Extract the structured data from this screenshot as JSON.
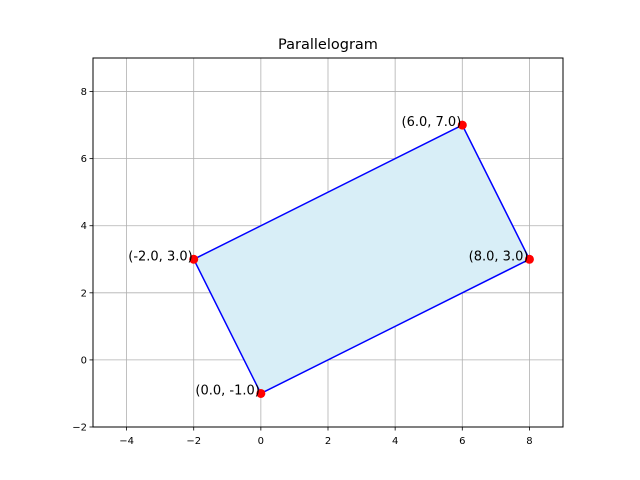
{
  "chart_data": {
    "type": "polygon",
    "title": "Parallelogram",
    "xlabel": "",
    "ylabel": "",
    "xlim": [
      -5,
      9
    ],
    "ylim": [
      -2,
      9
    ],
    "xticks": [
      -4,
      -2,
      0,
      2,
      4,
      6,
      8
    ],
    "yticks": [
      -2,
      0,
      2,
      4,
      6,
      8
    ],
    "xtick_labels": [
      "−4",
      "−2",
      "0",
      "2",
      "4",
      "6",
      "8"
    ],
    "ytick_labels": [
      "−2",
      "0",
      "2",
      "4",
      "6",
      "8"
    ],
    "grid": true,
    "vertices": [
      {
        "x": 0,
        "y": -1,
        "label": "(0.0, -1.0)"
      },
      {
        "x": 8,
        "y": 3,
        "label": "(8.0, 3.0)"
      },
      {
        "x": 6,
        "y": 7,
        "label": "(6.0, 7.0)"
      },
      {
        "x": -2,
        "y": 3,
        "label": "(-2.0, 3.0)"
      }
    ],
    "colors": {
      "fill": "#d8eef7",
      "edge": "#0000ff",
      "point": "#ff0000",
      "grid": "#b0b0b0",
      "axis": "#000000"
    }
  }
}
